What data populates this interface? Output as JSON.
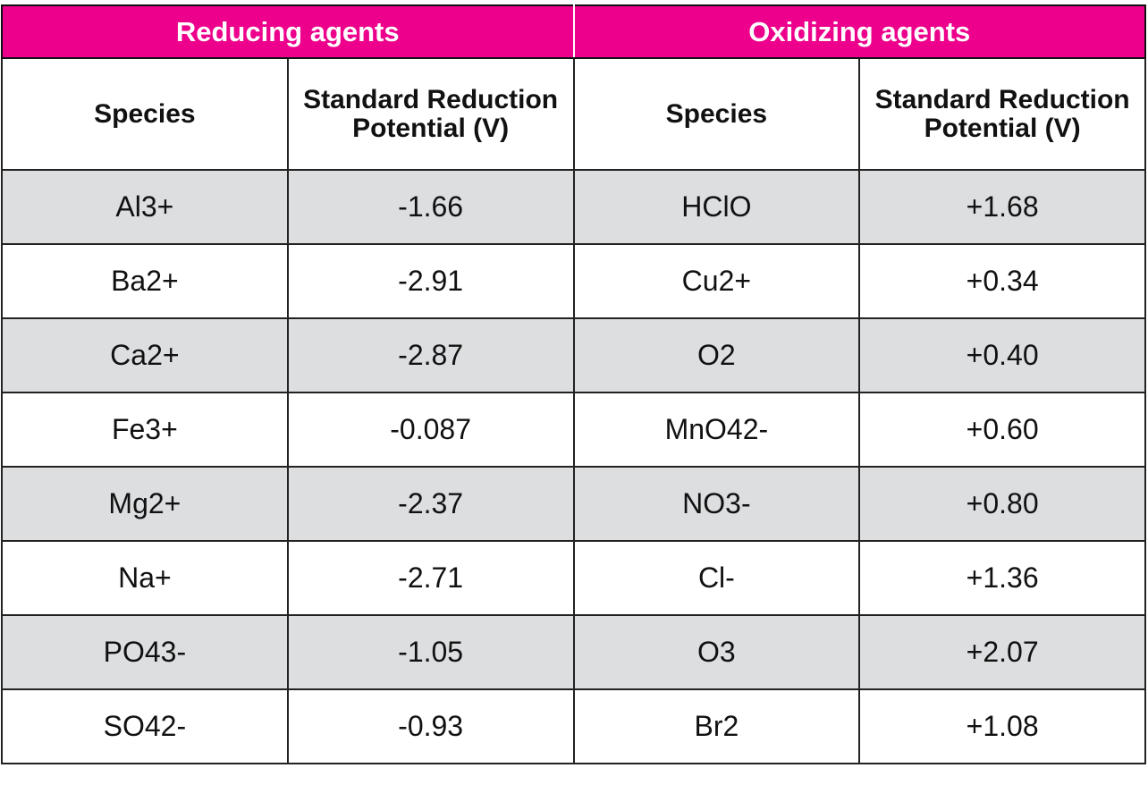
{
  "groups": [
    "Reducing agents",
    "Oxidizing agents"
  ],
  "columns": [
    "Species",
    "Standard Reduction Potential (V)",
    "Species",
    "Standard Reduction Potential (V)"
  ],
  "colors": {
    "header": "#ec008c",
    "shade": "#dddee0"
  },
  "rows": [
    [
      "Al3+",
      "-1.66",
      "HClO",
      "+1.68"
    ],
    [
      "Ba2+",
      "-2.91",
      "Cu2+",
      "+0.34"
    ],
    [
      "Ca2+",
      "-2.87",
      "O2",
      "+0.40"
    ],
    [
      "Fe3+",
      "-0.087",
      "MnO42-",
      "+0.60"
    ],
    [
      "Mg2+",
      "-2.37",
      "NO3-",
      "+0.80"
    ],
    [
      "Na+",
      "-2.71",
      "Cl-",
      "+1.36"
    ],
    [
      "PO43-",
      "-1.05",
      "O3",
      "+2.07"
    ],
    [
      "SO42-",
      "-0.93",
      "Br2",
      "+1.08"
    ]
  ]
}
